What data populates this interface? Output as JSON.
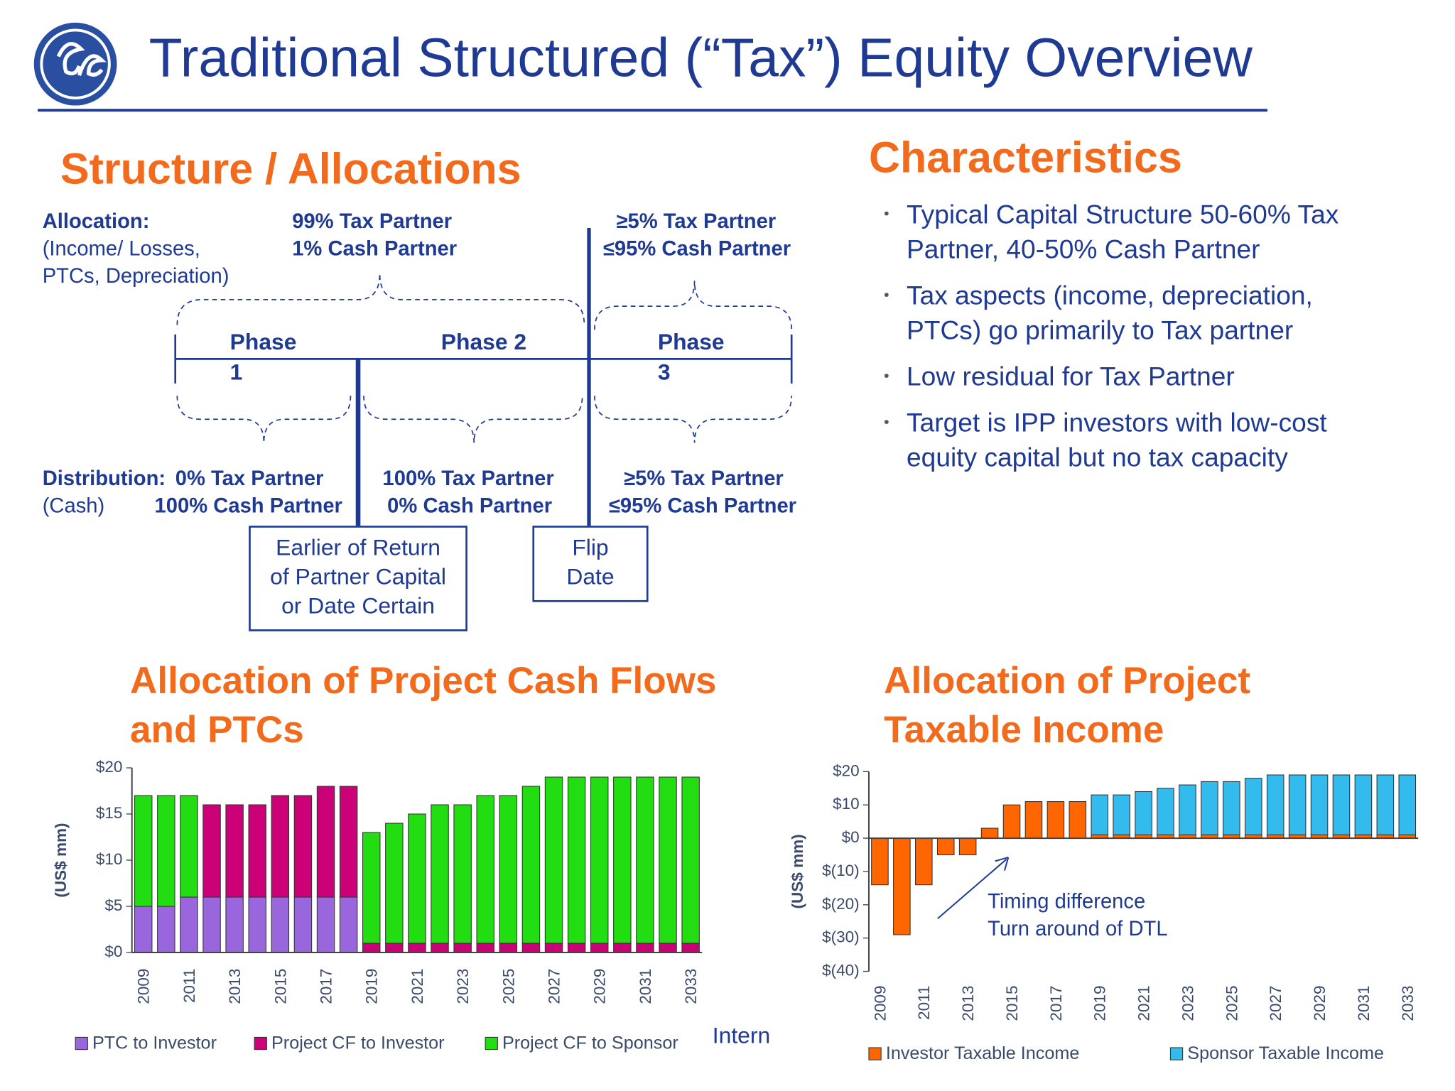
{
  "header": {
    "title": "Traditional Structured (“Tax”) Equity Overview"
  },
  "structure": {
    "title": "Structure / Allocations",
    "allocation_label": "Allocation:",
    "allocation_note": [
      "(Income/ Losses,",
      "PTCs, Depreciation)"
    ],
    "phases": [
      "Phase 1",
      "Phase 2",
      "Phase 3"
    ],
    "allocations": [
      [
        "99% Tax Partner",
        "1% Cash Partner"
      ],
      [
        "≥5% Tax Partner",
        "≤95% Cash Partner"
      ]
    ],
    "distribution_label": "Distribution:",
    "distribution_note": "(Cash)",
    "distributions": [
      [
        "0% Tax Partner",
        "100% Cash Partner"
      ],
      [
        "100% Tax Partner",
        "0% Cash Partner"
      ],
      [
        "≥5% Tax Partner",
        "≤95% Cash Partner"
      ]
    ],
    "milestones": [
      "Earlier of Return of Partner Capital or Date Certain",
      "Flip Date"
    ]
  },
  "characteristics": {
    "title": "Characteristics",
    "bullets": [
      "Typical Capital Structure 50-60% Tax Partner, 40-50% Cash Partner",
      "Tax aspects (income, depreciation, PTCs) go primarily to Tax partner",
      "Low residual for Tax Partner",
      "Target is IPP investors with low-cost equity capital but no tax capacity"
    ]
  },
  "footer": "Intern",
  "chart_data": [
    {
      "type": "stacked_bar",
      "title": "Allocation of Project Cash Flows and PTCs",
      "ylabel": "(US$ mm)",
      "categories": [
        "2009",
        null,
        "2011",
        null,
        "2013",
        null,
        "2015",
        null,
        "2017",
        null,
        "2019",
        null,
        "2021",
        null,
        "2023",
        null,
        "2025",
        null,
        "2027",
        null,
        "2029",
        null,
        "2031",
        null,
        "2033"
      ],
      "ylim": [
        0,
        20
      ],
      "yticks": [
        {
          "value": 0,
          "label": "$0"
        },
        {
          "value": 5,
          "label": "$5"
        },
        {
          "value": 10,
          "label": "$10"
        },
        {
          "value": 15,
          "label": "$15"
        },
        {
          "value": 20,
          "label": "$20"
        }
      ],
      "series": [
        {
          "name": "PTC to Investor",
          "color": "#9966dd",
          "values": [
            5,
            5,
            6,
            6,
            6,
            6,
            6,
            6,
            6,
            6,
            0,
            0,
            0,
            0,
            0,
            0,
            0,
            0,
            0,
            0,
            0,
            0,
            0,
            0,
            0
          ]
        },
        {
          "name": "Project CF to Investor",
          "color": "#cc0077",
          "values": [
            0,
            0,
            0,
            10,
            10,
            10,
            11,
            11,
            12,
            12,
            1,
            1,
            1,
            1,
            1,
            1,
            1,
            1,
            1,
            1,
            1,
            1,
            1,
            1,
            1
          ]
        },
        {
          "name": "Project CF to Sponsor",
          "color": "#22dd11",
          "values": [
            12,
            12,
            11,
            0,
            0,
            0,
            0,
            0,
            0,
            0,
            12,
            13,
            14,
            15,
            15,
            16,
            16,
            17,
            18,
            18,
            18,
            18,
            18,
            18,
            18
          ]
        }
      ]
    },
    {
      "type": "stacked_bar",
      "title": "Allocation of Project Taxable Income",
      "ylabel": "(US$ mm)",
      "annotation": [
        "Timing difference",
        "Turn around of DTL"
      ],
      "categories": [
        "2009",
        null,
        "2011",
        null,
        "2013",
        null,
        "2015",
        null,
        "2017",
        null,
        "2019",
        null,
        "2021",
        null,
        "2023",
        null,
        "2025",
        null,
        "2027",
        null,
        "2029",
        null,
        "2031",
        null,
        "2033"
      ],
      "ylim": [
        -40,
        20
      ],
      "yticks": [
        {
          "value": -40,
          "label": "$(40)"
        },
        {
          "value": -30,
          "label": "$(30)"
        },
        {
          "value": -20,
          "label": "$(20)"
        },
        {
          "value": -10,
          "label": "$(10)"
        },
        {
          "value": 0,
          "label": "$0"
        },
        {
          "value": 10,
          "label": "$10"
        },
        {
          "value": 20,
          "label": "$20"
        }
      ],
      "series": [
        {
          "name": "Investor Taxable Income",
          "color": "#ff6600",
          "values": [
            -14,
            -29,
            -14,
            -5,
            -5,
            3,
            10,
            11,
            11,
            11,
            1,
            1,
            1,
            1,
            1,
            1,
            1,
            1,
            1,
            1,
            1,
            1,
            1,
            1,
            1
          ]
        },
        {
          "name": "Sponsor Taxable Income",
          "color": "#33bbee",
          "values": [
            0,
            0,
            0,
            0,
            0,
            0,
            0,
            0,
            0,
            0,
            12,
            12,
            13,
            14,
            15,
            16,
            16,
            17,
            18,
            18,
            18,
            18,
            18,
            18,
            18
          ]
        }
      ]
    }
  ]
}
